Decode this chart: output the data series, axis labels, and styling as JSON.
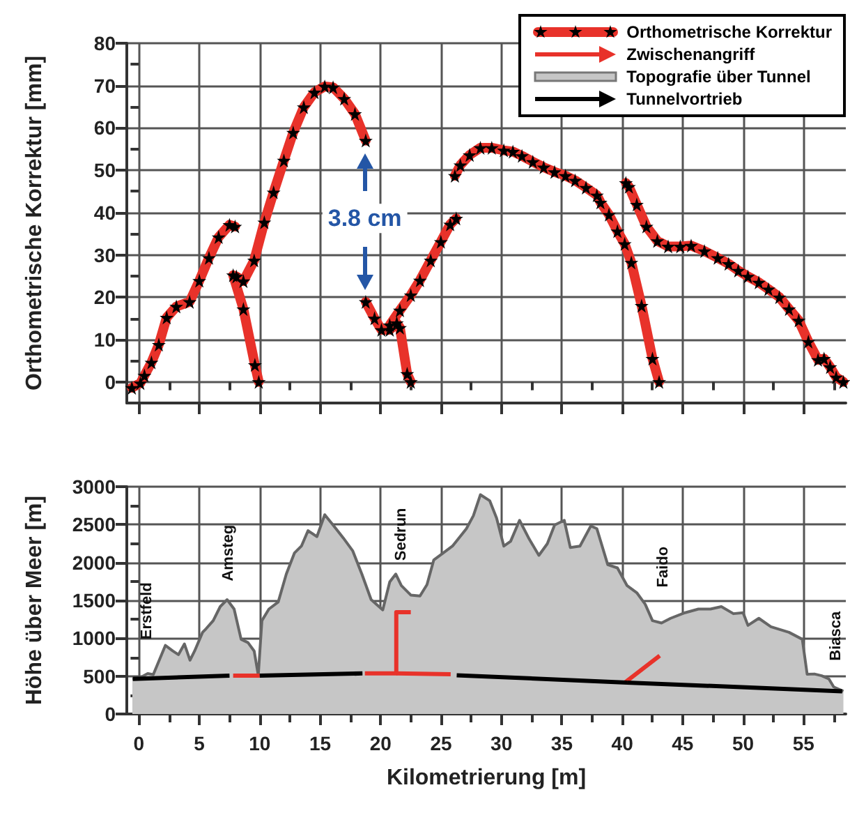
{
  "chart_data": [
    {
      "type": "line",
      "ylabel": "Orthometrische Korrektur [mm]",
      "xlim": [
        -1,
        58.5
      ],
      "xticks": [
        0,
        {
          "value": 2.5,
          "label": null
        },
        5,
        {
          "value": 7.5,
          "label": null
        },
        10,
        {
          "value": 12.5,
          "label": null
        },
        15,
        {
          "value": 17.5,
          "label": null
        },
        20,
        {
          "value": 22.5,
          "label": null
        },
        25,
        {
          "value": 27.5,
          "label": null
        },
        30,
        {
          "value": 32.5,
          "label": null
        },
        35,
        {
          "value": 37.5,
          "label": null
        },
        40,
        {
          "value": 42.5,
          "label": null
        },
        45,
        {
          "value": 47.5,
          "label": null
        },
        50,
        {
          "value": 52.5,
          "label": null
        },
        55,
        {
          "value": 57.5,
          "label": null
        }
      ],
      "ylim": [
        -5,
        80
      ],
      "yticks": [
        0,
        {
          "value": 5,
          "label": null
        },
        10,
        {
          "value": 15,
          "label": null
        },
        20,
        {
          "value": 25,
          "label": null
        },
        30,
        {
          "value": 35,
          "label": null
        },
        40,
        {
          "value": 45,
          "label": null
        },
        50,
        {
          "value": 55,
          "label": null
        },
        60,
        {
          "value": 65,
          "label": null
        },
        70,
        {
          "value": 75,
          "label": null
        },
        80
      ],
      "grid": true,
      "legend": "top right",
      "tick_labels": "y",
      "marker": "star",
      "annotations": [
        "3.8 cm"
      ],
      "series": [
        {
          "name": "Orthometrische Korrektur",
          "color": "#e8322a",
          "x": [
            -0.58,
            0.12,
            0.46,
            1.04,
            1.65,
            2.3,
            3.1,
            4.2,
            5.0,
            5.8,
            6.6,
            7.5,
            7.96,
            null,
            7.8,
            8.65,
            9.6,
            9.92,
            null,
            8.07,
            8.65,
            9.54,
            10.38,
            11.15,
            12.0,
            12.77,
            13.65,
            14.53,
            15.38,
            16.07,
            16.99,
            17.88,
            18.77,
            null,
            18.77,
            19.5,
            20.07,
            20.76,
            21.34,
            21.6,
            22.2,
            22.5,
            null,
            20.76,
            21.6,
            22.5,
            23.26,
            24.15,
            24.99,
            25.76,
            26.26,
            null,
            26.15,
            26.6,
            27.37,
            28.26,
            29.2,
            30.2,
            30.95,
            31.7,
            32.6,
            33.5,
            34.4,
            35.3,
            36.1,
            37.0,
            37.9,
            38.2,
            38.9,
            39.6,
            40.2,
            40.75,
            41.6,
            42.5,
            43.05,
            null,
            40.3,
            40.55,
            41.2,
            42.0,
            42.9,
            43.8,
            44.8,
            45.7,
            46.8,
            47.9,
            48.8,
            49.6,
            50.4,
            51.3,
            52.1,
            53.0,
            53.8,
            54.6,
            55.4,
            56.2,
            56.7,
            57.2,
            57.7,
            58.3
          ],
          "values": [
            -1.4,
            -0.3,
            1.5,
            4.6,
            8.8,
            15.2,
            17.8,
            18.9,
            23.9,
            29.3,
            34.2,
            37.1,
            36.7,
            null,
            25.2,
            17.2,
            4.0,
            0,
            null,
            24.9,
            23.8,
            28.7,
            37.7,
            44.8,
            52.3,
            58.9,
            64.9,
            68.4,
            69.8,
            69.6,
            66.9,
            63.3,
            57.0,
            null,
            18.9,
            15.0,
            12.3,
            12.3,
            13.9,
            12.8,
            1.9,
            0,
            null,
            13.4,
            16.9,
            20.5,
            24.0,
            28.7,
            33.1,
            37.2,
            38.6,
            null,
            48.7,
            51.2,
            53.6,
            55.3,
            55.3,
            54.7,
            54.4,
            53.4,
            52.0,
            50.7,
            49.6,
            48.7,
            47.6,
            45.9,
            44.1,
            42.4,
            39.5,
            35.6,
            32.6,
            28.2,
            18.0,
            5.5,
            0,
            null,
            47.0,
            46.1,
            41.9,
            36.7,
            33.3,
            32.0,
            32.0,
            32.2,
            30.9,
            29.3,
            27.9,
            26.3,
            24.9,
            23.5,
            21.9,
            20.0,
            17.2,
            14.5,
            9.5,
            5.2,
            5.5,
            3.5,
            1.1,
            0
          ]
        }
      ]
    },
    {
      "type": "line",
      "xlabel": "Kilometrierung [m]",
      "ylabel": "Höhe über Meer [m]",
      "xlim": [
        -1,
        58.5
      ],
      "xticks": [
        0,
        {
          "value": 2.5,
          "label": null
        },
        5,
        {
          "value": 7.5,
          "label": null
        },
        10,
        {
          "value": 12.5,
          "label": null
        },
        15,
        {
          "value": 17.5,
          "label": null
        },
        20,
        {
          "value": 22.5,
          "label": null
        },
        25,
        {
          "value": 27.5,
          "label": null
        },
        30,
        {
          "value": 32.5,
          "label": null
        },
        35,
        {
          "value": 37.5,
          "label": null
        },
        40,
        {
          "value": 42.5,
          "label": null
        },
        45,
        {
          "value": 47.5,
          "label": null
        },
        50,
        {
          "value": 52.5,
          "label": null
        },
        55,
        {
          "value": 57.5,
          "label": null
        }
      ],
      "ylim": [
        0,
        3000
      ],
      "yticks": [
        0,
        {
          "value": 250,
          "label": null
        },
        500,
        {
          "value": 750,
          "label": null
        },
        1000,
        {
          "value": 1250,
          "label": null
        },
        1500,
        {
          "value": 1750,
          "label": null
        },
        2000,
        {
          "value": 2250,
          "label": null
        },
        2500,
        {
          "value": 2750,
          "label": null
        },
        3000
      ],
      "grid": true,
      "annotations": [
        "Erstfeld",
        "Amsteg",
        "Sedrun",
        "Faido",
        "Biasca"
      ],
      "series": [
        {
          "name": "Zwischenangriff",
          "color": "#e8322a",
          "x": [
            10,
            7.8,
            null,
            22.5,
            21.3,
            21.3,
            18.7,
            null,
            21.3,
            25.8,
            null,
            43.1,
            40.2
          ],
          "values": [
            505,
            505,
            null,
            1343,
            1343,
            536,
            536,
            null,
            536,
            524,
            null,
            770,
            414
          ]
        },
        {
          "name": "Topografie über Tunnel",
          "type": "area",
          "color": "#c6c6c6",
          "x": [
            -0.54,
            0.04,
            0.73,
            1.19,
            2.19,
            2.81,
            3.27,
            3.77,
            4.23,
            4.61,
            5.27,
            5.57,
            6.15,
            6.73,
            7.3,
            7.88,
            8.46,
            9.03,
            9.54,
            9.88,
            10.18,
            10.76,
            11.53,
            12.2,
            12.87,
            13.45,
            14.0,
            14.73,
            15.38,
            16.07,
            16.92,
            17.69,
            18.45,
            19.22,
            20.18,
            20.76,
            21.26,
            21.72,
            22.5,
            23.26,
            23.84,
            24.4,
            25.18,
            25.95,
            27.1,
            27.68,
            28.26,
            29.03,
            29.6,
            30.2,
            30.76,
            31.5,
            32.3,
            33.1,
            33.8,
            34.4,
            35.2,
            35.7,
            36.5,
            37.4,
            37.9,
            38.8,
            39.6,
            40.4,
            41.2,
            41.9,
            42.5,
            43.25,
            44.0,
            45.2,
            46.3,
            47.3,
            48.2,
            49.2,
            50.0,
            50.4,
            51.3,
            52.3,
            53.8,
            54.9,
            55.3,
            55.9,
            56.5,
            57.1,
            57.5,
            58.3
          ],
          "values": [
            462,
            473,
            533,
            520,
            905,
            831,
            783,
            924,
            709,
            831,
            1078,
            1127,
            1232,
            1417,
            1509,
            1385,
            986,
            942,
            831,
            512,
            1232,
            1385,
            1478,
            1847,
            2124,
            2216,
            2420,
            2340,
            2630,
            2494,
            2322,
            2155,
            1847,
            1509,
            1374,
            1744,
            1847,
            1694,
            1570,
            1558,
            1707,
            2032,
            2124,
            2216,
            2445,
            2617,
            2894,
            2815,
            2586,
            2216,
            2279,
            2556,
            2309,
            2094,
            2248,
            2494,
            2556,
            2198,
            2216,
            2482,
            2445,
            1970,
            1928,
            1694,
            1601,
            1448,
            1232,
            1201,
            1263,
            1337,
            1385,
            1385,
            1417,
            1324,
            1337,
            1170,
            1263,
            1152,
            1078,
            986,
            524,
            528,
            505,
            462,
            357,
            300
          ]
        },
        {
          "name": "Tunnelvortrieb",
          "color": "#000000",
          "x": [
            -0.5,
            7.5,
            null,
            10,
            18.5,
            null,
            58.2,
            40.4,
            null,
            40.4,
            26.3
          ],
          "values": [
            462,
            506,
            null,
            506,
            535,
            null,
            300,
            415,
            null,
            415,
            511
          ]
        }
      ]
    }
  ]
}
